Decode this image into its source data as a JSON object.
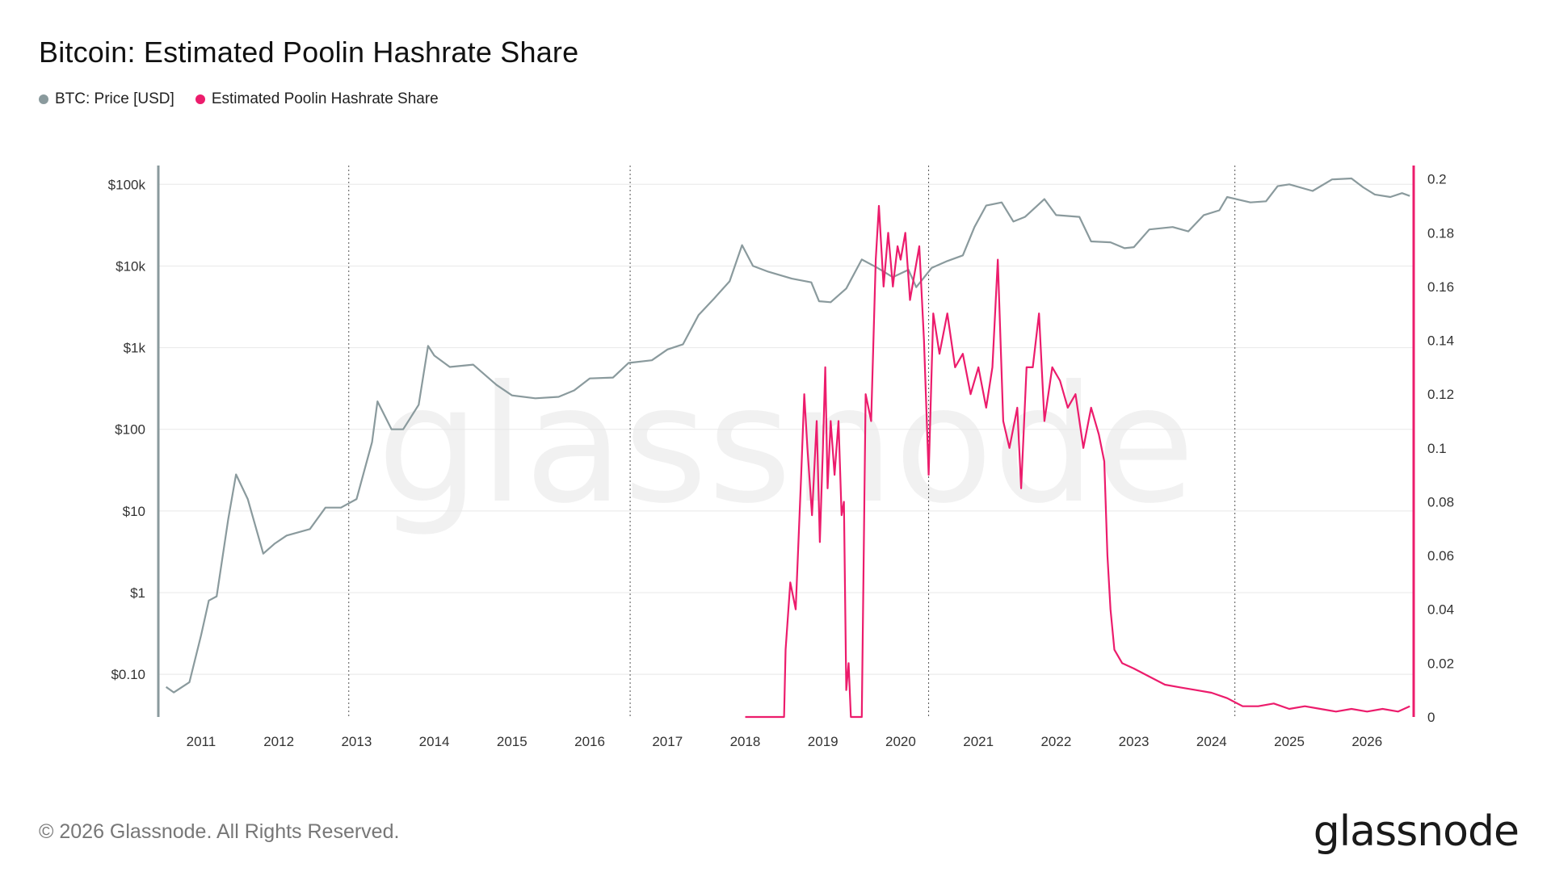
{
  "title": "Bitcoin: Estimated Poolin Hashrate Share",
  "footer": "© 2026 Glassnode. All Rights Reserved.",
  "logo_text": "glassnode",
  "watermark_text": "glassnode",
  "colors": {
    "price": "#8a9a9d",
    "share": "#ec1c6c",
    "grid": "#e8e8e8",
    "axis_left": "#8a9a9d",
    "axis_right": "#ec1c6c"
  },
  "chart_data": {
    "type": "line",
    "title": "Bitcoin: Estimated Poolin Hashrate Share",
    "legend_position": "top-left",
    "grid": true,
    "x_range": [
      2010.45,
      2026.6
    ],
    "x_ticks": [
      "2011",
      "2012",
      "2013",
      "2014",
      "2015",
      "2016",
      "2017",
      "2018",
      "2019",
      "2020",
      "2021",
      "2022",
      "2023",
      "2024",
      "2025",
      "2026"
    ],
    "event_lines_years": [
      2012.9,
      2016.52,
      2020.36,
      2024.3
    ],
    "y_left": {
      "scale": "log",
      "range": [
        0.03,
        170000
      ],
      "tick_values": [
        0.1,
        1,
        10,
        100,
        1000,
        10000,
        100000
      ],
      "tick_labels": [
        "$0.10",
        "$1",
        "$10",
        "$100",
        "$1k",
        "$10k",
        "$100k"
      ]
    },
    "y_right": {
      "scale": "linear",
      "range": [
        0,
        0.205
      ],
      "tick_values": [
        0,
        0.02,
        0.04,
        0.06,
        0.08,
        0.1,
        0.12,
        0.14,
        0.16,
        0.18,
        0.2
      ],
      "tick_labels": [
        "0",
        "0.02",
        "0.04",
        "0.06",
        "0.08",
        "0.1",
        "0.12",
        "0.14",
        "0.16",
        "0.18",
        "0.2"
      ]
    },
    "series": [
      {
        "name": "BTC: Price [USD]",
        "axis": "left",
        "points": [
          [
            2010.55,
            0.07
          ],
          [
            2010.65,
            0.06
          ],
          [
            2010.85,
            0.08
          ],
          [
            2011.0,
            0.3
          ],
          [
            2011.1,
            0.8
          ],
          [
            2011.2,
            0.9
          ],
          [
            2011.35,
            8
          ],
          [
            2011.45,
            28
          ],
          [
            2011.6,
            14
          ],
          [
            2011.8,
            3
          ],
          [
            2011.95,
            4
          ],
          [
            2012.1,
            5
          ],
          [
            2012.4,
            6
          ],
          [
            2012.6,
            11
          ],
          [
            2012.8,
            11
          ],
          [
            2013.0,
            14
          ],
          [
            2013.2,
            70
          ],
          [
            2013.27,
            220
          ],
          [
            2013.45,
            100
          ],
          [
            2013.6,
            100
          ],
          [
            2013.8,
            200
          ],
          [
            2013.92,
            1050
          ],
          [
            2014.0,
            800
          ],
          [
            2014.2,
            580
          ],
          [
            2014.5,
            620
          ],
          [
            2014.8,
            350
          ],
          [
            2015.0,
            260
          ],
          [
            2015.3,
            240
          ],
          [
            2015.6,
            250
          ],
          [
            2015.8,
            300
          ],
          [
            2016.0,
            420
          ],
          [
            2016.3,
            430
          ],
          [
            2016.5,
            650
          ],
          [
            2016.8,
            700
          ],
          [
            2017.0,
            950
          ],
          [
            2017.2,
            1100
          ],
          [
            2017.4,
            2500
          ],
          [
            2017.6,
            4000
          ],
          [
            2017.8,
            6500
          ],
          [
            2017.96,
            18000
          ],
          [
            2018.1,
            10000
          ],
          [
            2018.3,
            8500
          ],
          [
            2018.6,
            7000
          ],
          [
            2018.85,
            6300
          ],
          [
            2018.95,
            3700
          ],
          [
            2019.1,
            3600
          ],
          [
            2019.3,
            5300
          ],
          [
            2019.5,
            12000
          ],
          [
            2019.7,
            9500
          ],
          [
            2019.9,
            7300
          ],
          [
            2020.1,
            9000
          ],
          [
            2020.2,
            5500
          ],
          [
            2020.4,
            9500
          ],
          [
            2020.6,
            11500
          ],
          [
            2020.8,
            13500
          ],
          [
            2020.95,
            30000
          ],
          [
            2021.1,
            55000
          ],
          [
            2021.3,
            60000
          ],
          [
            2021.45,
            35000
          ],
          [
            2021.6,
            40000
          ],
          [
            2021.85,
            66000
          ],
          [
            2022.0,
            42000
          ],
          [
            2022.3,
            40000
          ],
          [
            2022.45,
            20000
          ],
          [
            2022.7,
            19500
          ],
          [
            2022.88,
            16500
          ],
          [
            2023.0,
            17000
          ],
          [
            2023.2,
            28000
          ],
          [
            2023.5,
            30000
          ],
          [
            2023.7,
            26500
          ],
          [
            2023.9,
            42000
          ],
          [
            2024.1,
            48000
          ],
          [
            2024.2,
            70000
          ],
          [
            2024.5,
            60000
          ],
          [
            2024.7,
            62000
          ],
          [
            2024.85,
            95000
          ],
          [
            2025.0,
            100000
          ],
          [
            2025.3,
            83000
          ],
          [
            2025.55,
            115000
          ],
          [
            2025.8,
            118000
          ],
          [
            2025.95,
            92000
          ],
          [
            2026.1,
            75000
          ],
          [
            2026.3,
            70000
          ],
          [
            2026.45,
            78000
          ],
          [
            2026.55,
            72000
          ]
        ]
      },
      {
        "name": "Estimated Poolin Hashrate Share",
        "axis": "right",
        "points": [
          [
            2018.0,
            0
          ],
          [
            2018.5,
            0
          ],
          [
            2018.52,
            0.025
          ],
          [
            2018.58,
            0.05
          ],
          [
            2018.65,
            0.04
          ],
          [
            2018.72,
            0.09
          ],
          [
            2018.76,
            0.12
          ],
          [
            2018.8,
            0.1
          ],
          [
            2018.86,
            0.075
          ],
          [
            2018.92,
            0.11
          ],
          [
            2018.96,
            0.065
          ],
          [
            2019.0,
            0.1
          ],
          [
            2019.03,
            0.13
          ],
          [
            2019.06,
            0.085
          ],
          [
            2019.1,
            0.11
          ],
          [
            2019.15,
            0.09
          ],
          [
            2019.2,
            0.11
          ],
          [
            2019.24,
            0.075
          ],
          [
            2019.27,
            0.08
          ],
          [
            2019.3,
            0.01
          ],
          [
            2019.33,
            0.02
          ],
          [
            2019.36,
            0.0
          ],
          [
            2019.5,
            0.0
          ],
          [
            2019.55,
            0.12
          ],
          [
            2019.62,
            0.11
          ],
          [
            2019.68,
            0.17
          ],
          [
            2019.72,
            0.19
          ],
          [
            2019.78,
            0.16
          ],
          [
            2019.84,
            0.18
          ],
          [
            2019.9,
            0.16
          ],
          [
            2019.96,
            0.175
          ],
          [
            2020.0,
            0.17
          ],
          [
            2020.06,
            0.18
          ],
          [
            2020.12,
            0.155
          ],
          [
            2020.18,
            0.165
          ],
          [
            2020.24,
            0.175
          ],
          [
            2020.3,
            0.14
          ],
          [
            2020.36,
            0.09
          ],
          [
            2020.42,
            0.15
          ],
          [
            2020.5,
            0.135
          ],
          [
            2020.6,
            0.15
          ],
          [
            2020.7,
            0.13
          ],
          [
            2020.8,
            0.135
          ],
          [
            2020.9,
            0.12
          ],
          [
            2021.0,
            0.13
          ],
          [
            2021.1,
            0.115
          ],
          [
            2021.18,
            0.13
          ],
          [
            2021.25,
            0.17
          ],
          [
            2021.32,
            0.11
          ],
          [
            2021.4,
            0.1
          ],
          [
            2021.5,
            0.115
          ],
          [
            2021.55,
            0.085
          ],
          [
            2021.62,
            0.13
          ],
          [
            2021.7,
            0.13
          ],
          [
            2021.78,
            0.15
          ],
          [
            2021.85,
            0.11
          ],
          [
            2021.95,
            0.13
          ],
          [
            2022.05,
            0.125
          ],
          [
            2022.15,
            0.115
          ],
          [
            2022.25,
            0.12
          ],
          [
            2022.35,
            0.1
          ],
          [
            2022.45,
            0.115
          ],
          [
            2022.55,
            0.105
          ],
          [
            2022.62,
            0.095
          ],
          [
            2022.66,
            0.06
          ],
          [
            2022.7,
            0.04
          ],
          [
            2022.75,
            0.025
          ],
          [
            2022.85,
            0.02
          ],
          [
            2023.0,
            0.018
          ],
          [
            2023.2,
            0.015
          ],
          [
            2023.4,
            0.012
          ],
          [
            2023.6,
            0.011
          ],
          [
            2023.8,
            0.01
          ],
          [
            2024.0,
            0.009
          ],
          [
            2024.2,
            0.007
          ],
          [
            2024.4,
            0.004
          ],
          [
            2024.6,
            0.004
          ],
          [
            2024.8,
            0.005
          ],
          [
            2025.0,
            0.003
          ],
          [
            2025.2,
            0.004
          ],
          [
            2025.4,
            0.003
          ],
          [
            2025.6,
            0.002
          ],
          [
            2025.8,
            0.003
          ],
          [
            2026.0,
            0.002
          ],
          [
            2026.2,
            0.003
          ],
          [
            2026.4,
            0.002
          ],
          [
            2026.55,
            0.004
          ]
        ]
      }
    ]
  }
}
